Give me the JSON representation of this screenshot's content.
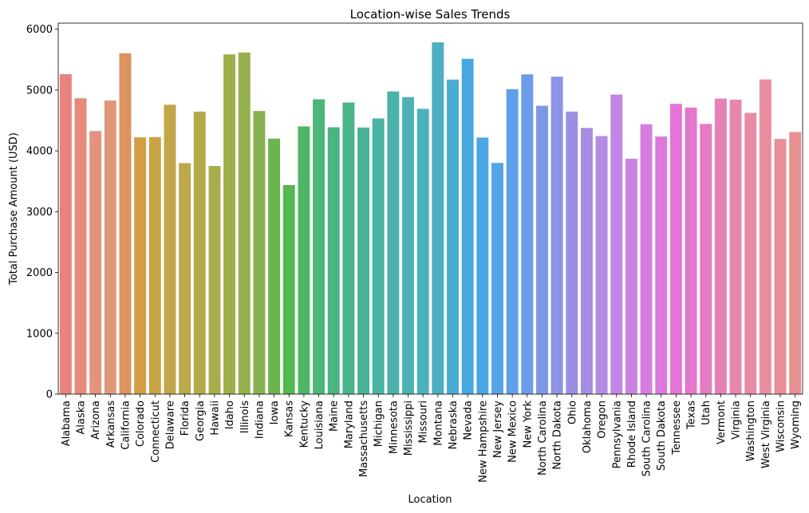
{
  "chart_data": {
    "type": "bar",
    "title": "Location-wise Sales Trends",
    "xlabel": "Location",
    "ylabel": "Total Purchase Amount (USD)",
    "ylim": [
      0,
      6100
    ],
    "yticks": [
      0,
      1000,
      2000,
      3000,
      4000,
      5000,
      6000
    ],
    "categories": [
      "Alabama",
      "Alaska",
      "Arizona",
      "Arkansas",
      "California",
      "Colorado",
      "Connecticut",
      "Delaware",
      "Florida",
      "Georgia",
      "Hawaii",
      "Idaho",
      "Illinois",
      "Indiana",
      "Iowa",
      "Kansas",
      "Kentucky",
      "Louisiana",
      "Maine",
      "Maryland",
      "Massachusetts",
      "Michigan",
      "Minnesota",
      "Mississippi",
      "Missouri",
      "Montana",
      "Nebraska",
      "Nevada",
      "New Hampshire",
      "New Jersey",
      "New Mexico",
      "New York",
      "North Carolina",
      "North Dakota",
      "Ohio",
      "Oklahoma",
      "Oregon",
      "Pennsylvania",
      "Rhode Island",
      "South Carolina",
      "South Dakota",
      "Tennessee",
      "Texas",
      "Utah",
      "Vermont",
      "Virginia",
      "Washington",
      "West Virginia",
      "Wisconsin",
      "Wyoming"
    ],
    "values": [
      5261,
      4865,
      4326,
      4828,
      5605,
      4222,
      4226,
      4758,
      3798,
      4645,
      3752,
      5587,
      5617,
      4655,
      4201,
      3437,
      4402,
      4848,
      4388,
      4795,
      4384,
      4533,
      4977,
      4883,
      4691,
      5784,
      5172,
      5514,
      4219,
      3802,
      5014,
      5257,
      4742,
      5220,
      4646,
      4376,
      4243,
      4926,
      3871,
      4439,
      4236,
      4772,
      4712,
      4443,
      4860,
      4842,
      4623,
      5174,
      4196,
      4309
    ],
    "colors": [
      "#e8837e",
      "#e58a7d",
      "#e3927b",
      "#df9878",
      "#dd9262",
      "#d19e44",
      "#c8a346",
      "#c2a64a",
      "#bda84a",
      "#b3aa4a",
      "#a9ad4b",
      "#a0ae4a",
      "#95b04c",
      "#86b150",
      "#6ab54d",
      "#52b84f",
      "#4fb667",
      "#4bb678",
      "#49b581",
      "#4ab48a",
      "#49b397",
      "#4ab3a2",
      "#4ab2aa",
      "#4bb1b2",
      "#4cb1bb",
      "#4dafc4",
      "#48acd3",
      "#47a8df",
      "#4ba6e6",
      "#53a3e8",
      "#5e9fe9",
      "#6c9be9",
      "#7b98e8",
      "#8a93e6",
      "#9a90e3",
      "#a68de2",
      "#b38ae4",
      "#c187e4",
      "#cb82e2",
      "#d67ee0",
      "#dd78dc",
      "#e375d6",
      "#e576cd",
      "#e57cc4",
      "#e681b8",
      "#e787ae",
      "#e88ba7",
      "#e78fa0",
      "#e78e98",
      "#e6908f"
    ]
  }
}
